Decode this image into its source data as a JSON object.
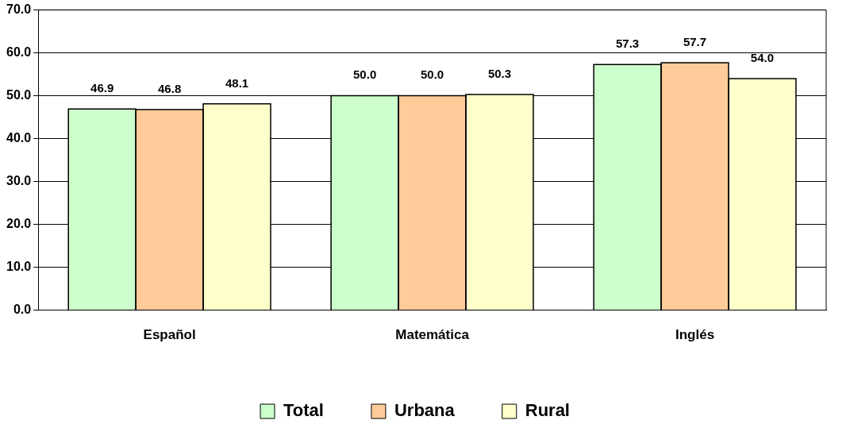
{
  "chart_data": {
    "type": "bar",
    "categories": [
      "Español",
      "Matemática",
      "Inglés"
    ],
    "series": [
      {
        "name": "Total",
        "color": "#ccffcc",
        "values": [
          46.9,
          50.0,
          57.3
        ],
        "value_labels": [
          "46.9",
          "50.0",
          "57.3"
        ]
      },
      {
        "name": "Urbana",
        "color": "#ffcc99",
        "values": [
          46.8,
          50.0,
          57.7
        ],
        "value_labels": [
          "46.8",
          "50.0",
          "57.7"
        ]
      },
      {
        "name": "Rural",
        "color": "#ffffcc",
        "values": [
          48.1,
          50.3,
          54.0
        ],
        "value_labels": [
          "48.1",
          "50.3",
          "54.0"
        ]
      }
    ],
    "ylim": [
      0,
      70
    ],
    "yticks": [
      {
        "value": 0,
        "label": "0.0"
      },
      {
        "value": 10,
        "label": "10.0"
      },
      {
        "value": 20,
        "label": "20.0"
      },
      {
        "value": 30,
        "label": "30.0"
      },
      {
        "value": 40,
        "label": "40.0"
      },
      {
        "value": 50,
        "label": "50.0"
      },
      {
        "value": 60,
        "label": "60.0"
      },
      {
        "value": 70,
        "label": "70.0"
      }
    ],
    "grid": "y",
    "legend": "bottom"
  }
}
